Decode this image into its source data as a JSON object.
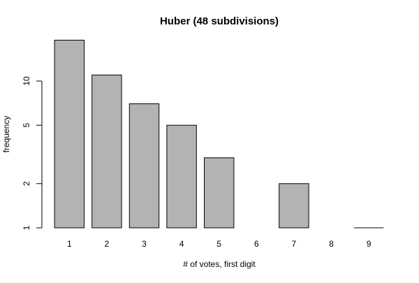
{
  "chart_data": {
    "type": "bar",
    "title": "Huber (48 subdivisions)",
    "xlabel": "# of votes, first digit",
    "ylabel": "frequency",
    "y_scale": "log",
    "ylim": [
      1,
      20
    ],
    "y_ticks": [
      1,
      2,
      5,
      10
    ],
    "categories": [
      "1",
      "2",
      "3",
      "4",
      "5",
      "6",
      "7",
      "8",
      "9"
    ],
    "values": [
      19,
      11,
      7,
      5,
      3,
      0,
      2,
      0,
      1
    ],
    "bar_color": "#b3b3b3",
    "bar_border_color": "#000000",
    "grid": false,
    "legend": "none"
  }
}
